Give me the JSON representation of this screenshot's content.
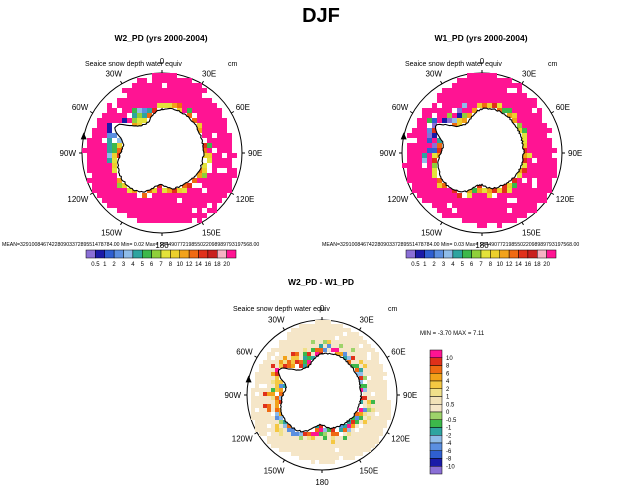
{
  "figure": {
    "title": "DJF"
  },
  "chart_data": [
    {
      "type": "heatmap",
      "projection": "south-polar-stereographic",
      "title": "W2_PD (yrs 2000-2004)",
      "subtitle": "Seaice snow depth water equiv",
      "units": "cm",
      "lon_labels": [
        "0",
        "30E",
        "60E",
        "90E",
        "120E",
        "150E",
        "180",
        "150W",
        "120W",
        "90W",
        "60W",
        "30W"
      ],
      "stats": {
        "mean_label": "MEAN=",
        "mean": "329100846742280903372895514787​84.00",
        "min_label": "Min=",
        "min": "0.02",
        "max_label": "Max=",
        "max": "98449077219855022098989793197568.00"
      },
      "colorbar": {
        "orientation": "horizontal",
        "levels": [
          "0.5",
          "1",
          "2",
          "3",
          "4",
          "5",
          "6",
          "7",
          "8",
          "10",
          "12",
          "14",
          "16",
          "18",
          "20"
        ],
        "colors": [
          "#8a6fd6",
          "#1a1aa8",
          "#2f5fd1",
          "#5b8fe0",
          "#8fbce8",
          "#2ea4a0",
          "#3cb84a",
          "#8fcf3a",
          "#e3e33a",
          "#ecd02c",
          "#f2a21a",
          "#ef6a12",
          "#e0301a",
          "#c81e1e",
          "#f7b2c4",
          "#ff1493"
        ]
      }
    },
    {
      "type": "heatmap",
      "projection": "south-polar-stereographic",
      "title": "W1_PD (yrs 2000-2004)",
      "subtitle": "Seaice snow depth water equiv",
      "units": "cm",
      "lon_labels": [
        "0",
        "30E",
        "60E",
        "90E",
        "120E",
        "150E",
        "180",
        "150W",
        "120W",
        "90W",
        "60W",
        "30W"
      ],
      "stats": {
        "mean_label": "MEAN=",
        "mean": "329100846742280903372895514787​84.00",
        "min_label": "Min=",
        "min": "0.03",
        "max_label": "Max=",
        "max": "98449077219855022098989793197568.00"
      },
      "colorbar": {
        "orientation": "horizontal",
        "levels": [
          "0.5",
          "1",
          "2",
          "3",
          "4",
          "5",
          "6",
          "7",
          "8",
          "10",
          "12",
          "14",
          "16",
          "18",
          "20"
        ],
        "colors": [
          "#8a6fd6",
          "#1a1aa8",
          "#2f5fd1",
          "#5b8fe0",
          "#8fbce8",
          "#2ea4a0",
          "#3cb84a",
          "#8fcf3a",
          "#e3e33a",
          "#ecd02c",
          "#f2a21a",
          "#ef6a12",
          "#e0301a",
          "#c81e1e",
          "#f7b2c4",
          "#ff1493"
        ]
      }
    },
    {
      "type": "heatmap",
      "projection": "south-polar-stereographic",
      "title": "W2_PD - W1_PD",
      "subtitle": "Seaice snow depth water equiv",
      "units": "cm",
      "lon_labels": [
        "0",
        "30E",
        "60E",
        "90E",
        "120E",
        "150E",
        "180",
        "150W",
        "120W",
        "90W",
        "60W",
        "30W"
      ],
      "minmax_label": "MIN =",
      "min": "-3.70",
      "max_label": "MAX =",
      "max": "7.11",
      "colorbar": {
        "orientation": "vertical",
        "levels": [
          "10",
          "8",
          "6",
          "4",
          "2",
          "1",
          "0.5",
          "0",
          "-0.5",
          "-1",
          "-2",
          "-4",
          "-6",
          "-8",
          "-10"
        ],
        "colors": [
          "#ff1493",
          "#e0301a",
          "#ef6a12",
          "#f2a21a",
          "#f5c842",
          "#f0e08a",
          "#f2e2b8",
          "#f5e6c8",
          "#9ed36a",
          "#3cb84a",
          "#2ea4a0",
          "#8fbce8",
          "#5b8fe0",
          "#2f5fd1",
          "#1a1aa8",
          "#8a6fd6"
        ]
      }
    }
  ]
}
